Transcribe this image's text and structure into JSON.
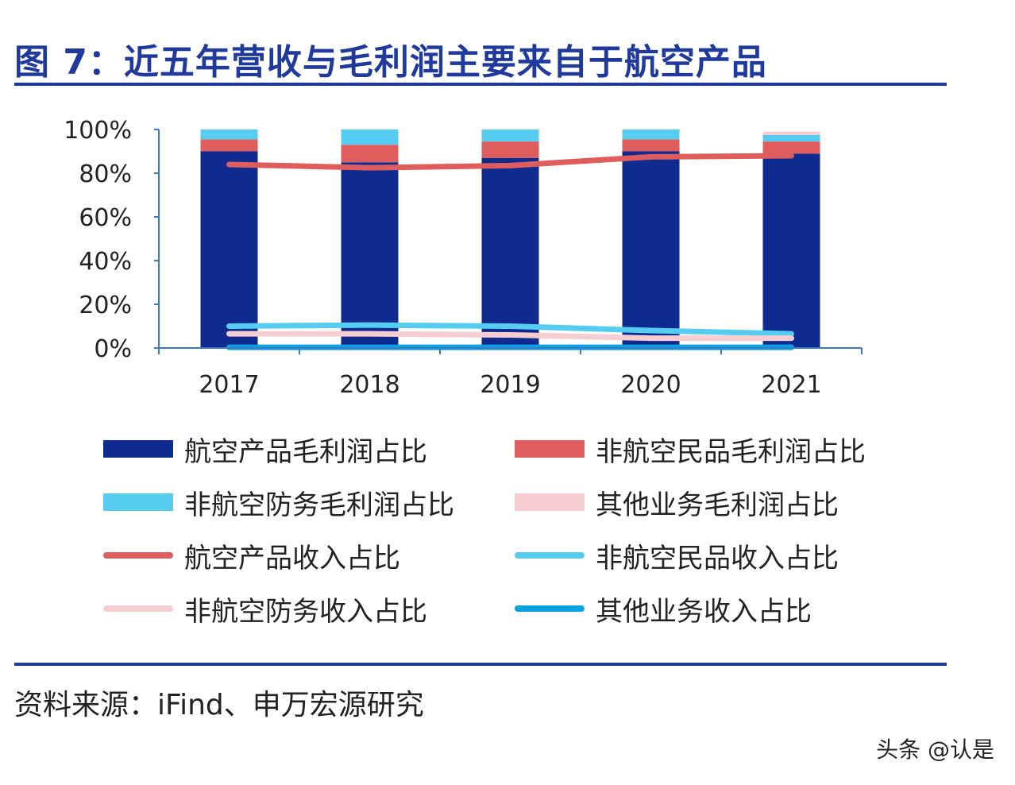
{
  "figure": {
    "title": "图 7：近五年营收与毛利润主要来自于航空产品",
    "source": "资料来源：iFind、申万宏源研究",
    "watermark": "头条 @认是"
  },
  "chart_data": {
    "type": "bar",
    "stacked": true,
    "categories": [
      "2017",
      "2018",
      "2019",
      "2020",
      "2021"
    ],
    "ylim": [
      0,
      100
    ],
    "yticks": [
      "0%",
      "20%",
      "40%",
      "60%",
      "80%",
      "100%"
    ],
    "series": [
      {
        "name": "航空产品毛利润占比",
        "kind": "bar",
        "color": "#0f2b8f",
        "values": [
          90,
          85,
          87,
          90,
          89
        ]
      },
      {
        "name": "非航空民品毛利润占比",
        "kind": "bar",
        "color": "#e05d5d",
        "values": [
          5.5,
          8,
          7.5,
          5.5,
          5.5
        ]
      },
      {
        "name": "非航空防务毛利润占比",
        "kind": "bar",
        "color": "#56cdf0",
        "values": [
          4.5,
          7,
          5.5,
          4.5,
          3
        ]
      },
      {
        "name": "其他业务毛利润占比",
        "kind": "bar",
        "color": "#f6cdd0",
        "values": [
          0,
          0,
          0,
          0,
          1.5
        ]
      },
      {
        "name": "航空产品收入占比",
        "kind": "line",
        "color": "#e05d5d",
        "values": [
          84,
          82.5,
          83.5,
          87.5,
          88
        ]
      },
      {
        "name": "非航空民品收入占比",
        "kind": "line",
        "color": "#56cdf0",
        "values": [
          10,
          10.5,
          10,
          8,
          6.5
        ]
      },
      {
        "name": "非航空防务收入占比",
        "kind": "line",
        "color": "#f6cdd0",
        "values": [
          6.5,
          6.5,
          6,
          4.5,
          4.5
        ]
      },
      {
        "name": "其他业务收入占比",
        "kind": "line",
        "color": "#0aa2e0",
        "values": [
          0.3,
          0.3,
          0.3,
          0.3,
          0.3
        ]
      }
    ],
    "legend_position": "bottom"
  }
}
